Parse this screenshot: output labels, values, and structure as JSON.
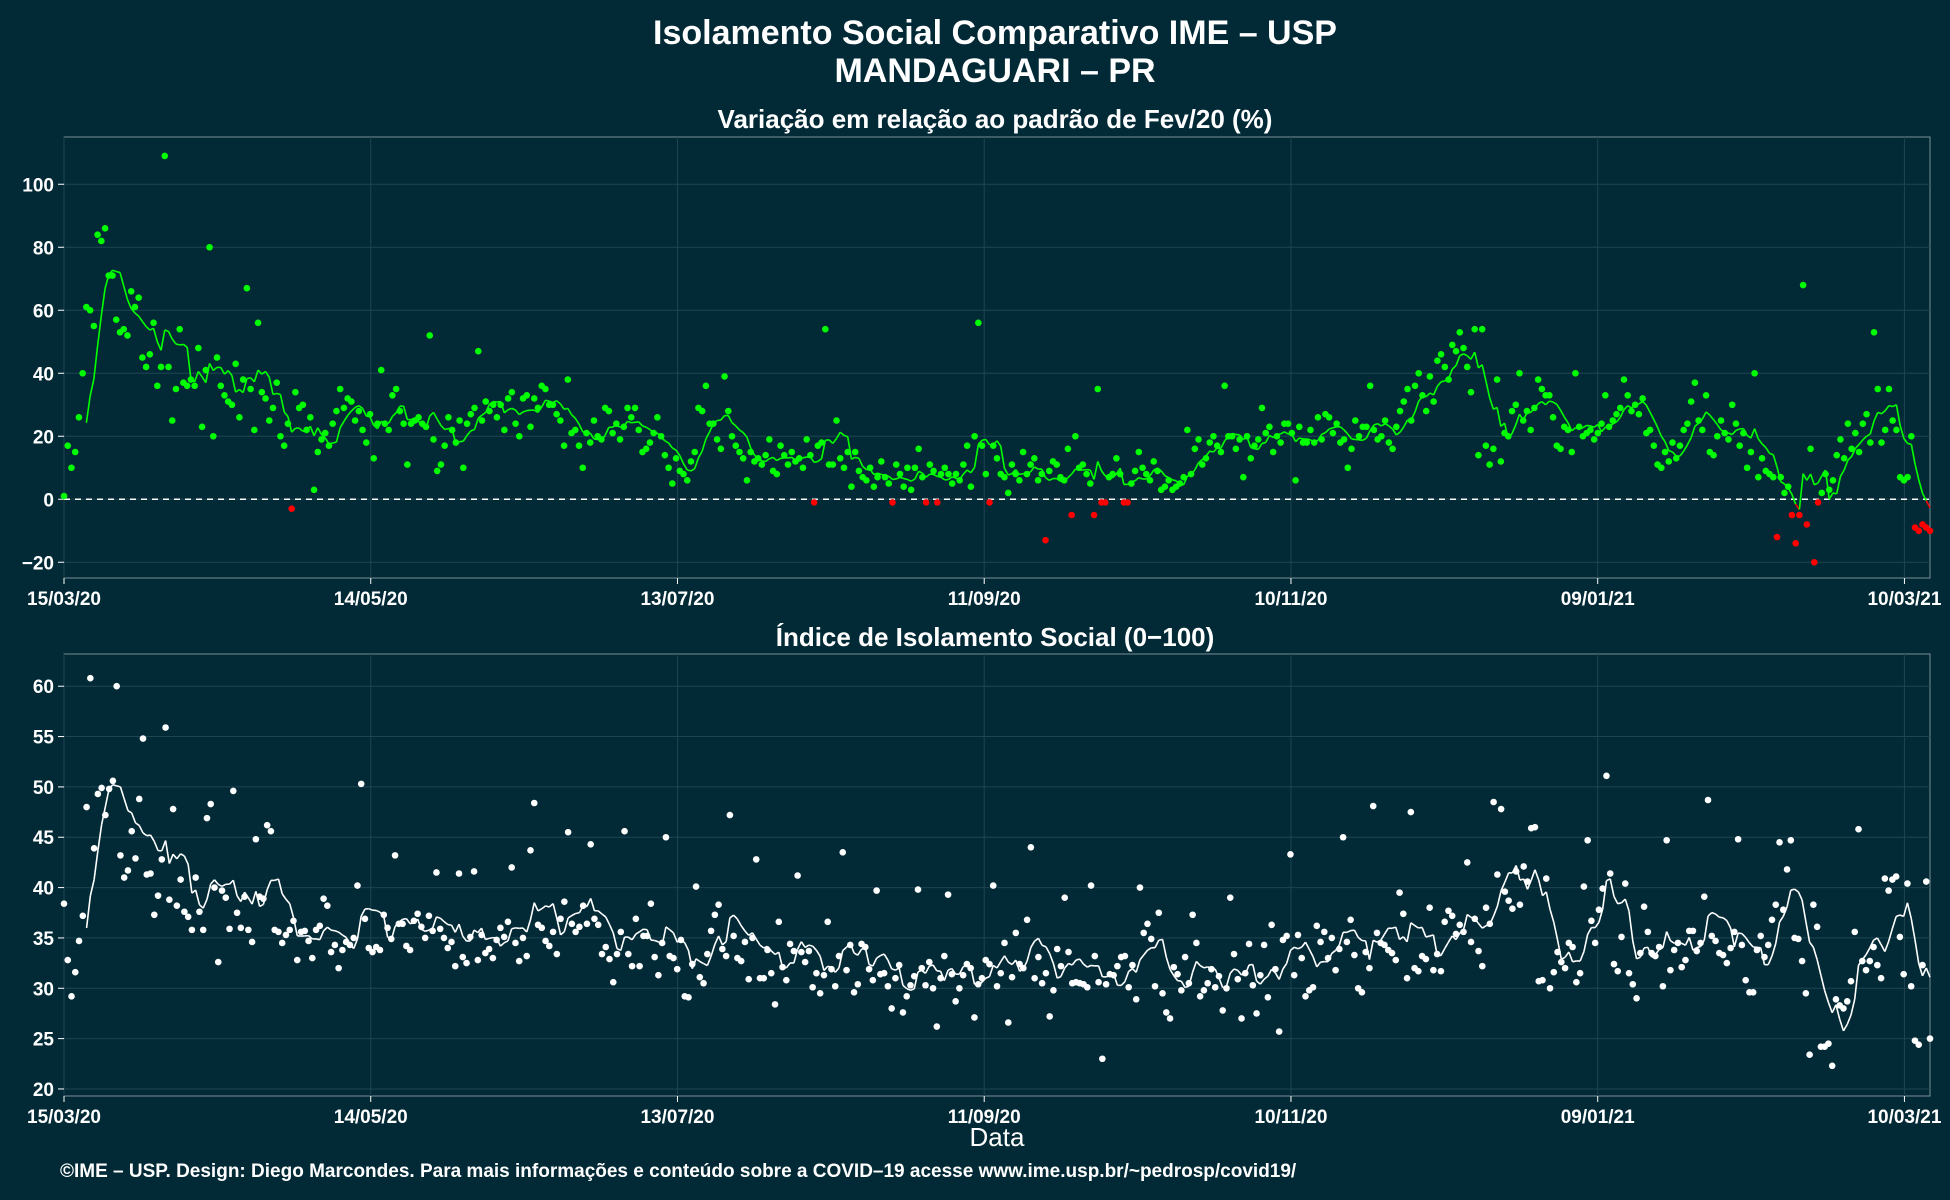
{
  "title_line1": "Isolamento Social Comparativo IME – USP",
  "title_line2": "MANDAGUARI – PR",
  "footer": "©IME – USP. Design: Diego Marcondes. Para mais informações e conteúdo sobre a COVID–19 acesse www.ime.usp.br/~pedrosp/covid19/",
  "colors": {
    "background": "#022a36",
    "positive": "#00ff00",
    "negative": "#ff0000",
    "index": "#ffffff",
    "grid": "#1e4452"
  },
  "chart_data": [
    {
      "type": "scatter",
      "title": "Variação em relação ao padrão de Fev/20 (%)",
      "xlabel": "",
      "ylabel": "",
      "x_ticks": [
        "15/03/20",
        "14/05/20",
        "13/07/20",
        "11/09/20",
        "10/11/20",
        "09/01/21",
        "10/03/21"
      ],
      "y_ticks": [
        -20,
        0,
        20,
        40,
        60,
        80,
        100
      ],
      "ylim": [
        -25,
        115
      ],
      "xlim_days": [
        0,
        365
      ],
      "reference_line": 0,
      "series": [
        {
          "values": [
            1,
            17,
            10,
            15,
            26,
            40,
            61,
            60,
            55,
            84,
            82,
            86,
            71,
            71,
            57,
            53,
            54,
            52,
            66,
            61,
            64,
            45,
            42,
            46,
            56,
            36,
            42,
            109,
            42,
            25,
            35,
            54,
            37,
            36,
            38,
            36,
            48,
            23,
            41,
            80,
            20,
            45,
            36,
            33,
            31,
            30,
            43,
            26,
            38,
            67,
            35,
            22,
            56,
            34,
            32,
            25,
            29,
            37,
            20,
            17,
            24,
            -3,
            34,
            29,
            30,
            22,
            26,
            3,
            15,
            19,
            21,
            17,
            24,
            28,
            35,
            29,
            32,
            31,
            25,
            28,
            22,
            18,
            27,
            13,
            24,
            41,
            24,
            22,
            33,
            35,
            28,
            24,
            11,
            24,
            25,
            26,
            24,
            23,
            52,
            19,
            9,
            11,
            17,
            26,
            22,
            18,
            25,
            10,
            24,
            27,
            29,
            47,
            25,
            31,
            28,
            30,
            26,
            30,
            22,
            32,
            34,
            24,
            20,
            32,
            33,
            23,
            32,
            29,
            36,
            35,
            30,
            30,
            27,
            25,
            17,
            38,
            21,
            22,
            17,
            10,
            21,
            18,
            25,
            20,
            19,
            29,
            28,
            21,
            24,
            19,
            23,
            29,
            26,
            29,
            22,
            15,
            16,
            18,
            21,
            26,
            20,
            14,
            10,
            5,
            13,
            9,
            8,
            6,
            12,
            15,
            29,
            28,
            36,
            24,
            24,
            19,
            16,
            39,
            28,
            20,
            17,
            15,
            13,
            6,
            15,
            12,
            13,
            11,
            14,
            19,
            9,
            8,
            17,
            14,
            11,
            15,
            12,
            13,
            10,
            19,
            14,
            -1,
            17,
            18,
            54,
            11,
            11,
            25,
            13,
            10,
            15,
            4,
            15,
            9,
            7,
            6,
            10,
            4,
            7,
            12,
            7,
            5,
            -1,
            11,
            8,
            4,
            10,
            3,
            10,
            16,
            7,
            -1,
            11,
            9,
            -1,
            8,
            10,
            8,
            5,
            8,
            6,
            11,
            17,
            4,
            20,
            56,
            17,
            8,
            -1,
            17,
            13,
            8,
            7,
            2,
            11,
            8,
            6,
            15,
            8,
            11,
            13,
            6,
            8,
            -13,
            9,
            12,
            11,
            7,
            6,
            16,
            -5,
            20,
            10,
            11,
            8,
            5,
            -5,
            35,
            -1,
            -1,
            7,
            8,
            13,
            8,
            -1,
            -1,
            5,
            9,
            15,
            10,
            8,
            6,
            12,
            9,
            3,
            4,
            6,
            3,
            4,
            5,
            7,
            22,
            8,
            16,
            19,
            11,
            13,
            18,
            20,
            17,
            15,
            36,
            20,
            20,
            16,
            19,
            7,
            20,
            13,
            17,
            19,
            29,
            21,
            23,
            15,
            20,
            18,
            24,
            24,
            21,
            6,
            23,
            18,
            18,
            22,
            18,
            26,
            19,
            27,
            26,
            21,
            24,
            18,
            19,
            10,
            16,
            25,
            20,
            23,
            23,
            36,
            22,
            19,
            20,
            25,
            18,
            16,
            23,
            28,
            31,
            35,
            25,
            36,
            40,
            33,
            28,
            39,
            31,
            44,
            46,
            42,
            38,
            49,
            47,
            53,
            48,
            42,
            34,
            54,
            14,
            54,
            17,
            11,
            16,
            38,
            12,
            21,
            20,
            28,
            30,
            40,
            25,
            28,
            22,
            29,
            38,
            35,
            33,
            33,
            26,
            17,
            16,
            23,
            22,
            15,
            40,
            23,
            20,
            21,
            22,
            19,
            21,
            24,
            33,
            23,
            25,
            27,
            29,
            38,
            33,
            28,
            30,
            27,
            32,
            21,
            22,
            17,
            11,
            10,
            15,
            12,
            18,
            13,
            17,
            22,
            24,
            31,
            37,
            25,
            22,
            33,
            15,
            14,
            20,
            25,
            21,
            19,
            30,
            24,
            17,
            21,
            10,
            15,
            40,
            7,
            13,
            9,
            8,
            7,
            -12,
            7,
            2,
            4,
            -5,
            -14,
            -5,
            68,
            -8,
            16,
            -20,
            -1,
            2,
            8,
            3,
            6,
            14,
            19,
            13,
            24,
            16,
            21,
            15,
            24,
            27,
            18,
            53,
            35,
            18,
            22,
            35,
            25,
            22,
            7,
            6,
            7,
            20,
            -9,
            -10,
            -8,
            -9,
            -10
          ],
          "note": "single daily values; color by sign (green >= 0, red < 0); 7-day moving average drawn as line"
        }
      ]
    },
    {
      "type": "scatter",
      "title": "Índice de Isolamento Social (0−100)",
      "xlabel": "Data",
      "ylabel": "",
      "x_ticks": [
        "15/03/20",
        "14/05/20",
        "13/07/20",
        "11/09/20",
        "10/11/20",
        "09/01/21",
        "10/03/21"
      ],
      "y_ticks": [
        20,
        25,
        30,
        35,
        40,
        45,
        50,
        55,
        60
      ],
      "ylim": [
        19.3,
        63.2
      ],
      "xlim_days": [
        0,
        365
      ],
      "series": [
        {
          "values": [
            38.4,
            32.8,
            29.2,
            31.6,
            34.7,
            37.2,
            48.0,
            60.8,
            43.9,
            49.3,
            49.9,
            47.2,
            49.8,
            50.6,
            60.0,
            43.2,
            41.0,
            41.7,
            45.6,
            42.9,
            48.8,
            54.8,
            41.3,
            41.4,
            37.3,
            39.2,
            42.8,
            55.9,
            38.8,
            47.8,
            38.2,
            40.8,
            37.6,
            37.1,
            35.8,
            41.0,
            37.6,
            35.8,
            46.9,
            48.3,
            40.0,
            32.6,
            39.7,
            39.0,
            35.9,
            49.6,
            37.5,
            36.0,
            39.1,
            35.8,
            34.6,
            44.8,
            39.1,
            38.9,
            46.2,
            45.6,
            35.8,
            35.6,
            34.5,
            35.3,
            35.8,
            36.7,
            32.8,
            35.6,
            35.7,
            34.7,
            33.0,
            35.8,
            36.2,
            38.9,
            38.2,
            33.6,
            34.3,
            32.0,
            33.8,
            34.6,
            34.3,
            35.0,
            40.2,
            50.3,
            36.9,
            34.0,
            33.6,
            34.1,
            33.8,
            37.3,
            36.0,
            34.9,
            43.2,
            36.4,
            36.4,
            34.2,
            33.8,
            36.7,
            37.4,
            36.1,
            35.0,
            37.2,
            35.7,
            41.5,
            35.9,
            35.0,
            34.0,
            34.6,
            32.2,
            41.4,
            33.1,
            32.5,
            35.1,
            41.6,
            32.8,
            35.3,
            33.5,
            33.9,
            33.0,
            34.8,
            36.0,
            35.1,
            36.6,
            42.0,
            34.5,
            32.7,
            35.0,
            33.2,
            43.7,
            48.4,
            36.3,
            36.0,
            34.7,
            34.2,
            35.6,
            33.4,
            36.9,
            38.6,
            45.5,
            36.4,
            35.6,
            36.1,
            38.2,
            36.4,
            44.3,
            36.9,
            36.3,
            33.4,
            34.1,
            32.9,
            30.6,
            33.4,
            35.6,
            45.6,
            33.4,
            32.2,
            36.9,
            32.2,
            35.2,
            35.2,
            38.4,
            33.1,
            31.3,
            34.5,
            45.0,
            33.2,
            33.0,
            31.9,
            34.8,
            29.2,
            29.1,
            32.4,
            40.1,
            31.1,
            30.5,
            33.4,
            35.7,
            37.3,
            38.3,
            33.9,
            33.2,
            47.2,
            35.2,
            33.0,
            32.7,
            34.6,
            30.9,
            35.0,
            42.8,
            31.0,
            31.0,
            33.8,
            31.5,
            28.4,
            36.6,
            32.1,
            30.8,
            34.4,
            33.7,
            41.2,
            33.6,
            32.6,
            33.7,
            30.1,
            31.5,
            29.5,
            31.3,
            36.6,
            31.9,
            30.2,
            33.2,
            43.5,
            31.8,
            34.3,
            29.6,
            30.4,
            34.4,
            34.1,
            31.9,
            30.8,
            39.7,
            31.4,
            31.5,
            30.2,
            28.0,
            31.0,
            32.3,
            27.6,
            29.2,
            30.3,
            31.2,
            39.8,
            32.0,
            30.3,
            32.6,
            30.0,
            26.2,
            31.0,
            33.2,
            39.3,
            31.4,
            28.7,
            30.0,
            31.3,
            32.4,
            32.0,
            27.1,
            30.4,
            31.0,
            32.8,
            32.4,
            40.2,
            30.2,
            31.5,
            34.5,
            26.6,
            31.1,
            35.5,
            32.4,
            32.0,
            36.8,
            44.0,
            31.0,
            33.1,
            30.5,
            31.5,
            27.2,
            29.8,
            33.9,
            32.2,
            39.0,
            33.6,
            30.5,
            30.6,
            30.5,
            30.4,
            30.1,
            40.2,
            33.2,
            30.6,
            23.0,
            30.4,
            31.4,
            31.3,
            32.2,
            33.1,
            33.2,
            30.1,
            32.3,
            28.9,
            40.0,
            35.5,
            36.4,
            34.9,
            30.2,
            37.5,
            29.5,
            27.6,
            27.0,
            32.1,
            31.4,
            29.8,
            33.1,
            30.5,
            37.3,
            34.5,
            29.2,
            29.8,
            30.5,
            31.9,
            30.1,
            31.2,
            27.8,
            30.0,
            39.0,
            33.4,
            30.9,
            27.0,
            31.5,
            34.4,
            30.3,
            27.5,
            31.3,
            34.3,
            29.1,
            36.3,
            31.9,
            25.7,
            34.8,
            35.2,
            43.3,
            31.3,
            35.3,
            33.0,
            29.2,
            29.8,
            30.1,
            36.2,
            34.6,
            35.6,
            33.0,
            35.0,
            31.8,
            33.9,
            45.0,
            34.6,
            36.8,
            33.3,
            30.0,
            29.6,
            33.6,
            32.0,
            48.1,
            35.5,
            34.5,
            34.3,
            33.8,
            33.5,
            32.8,
            39.5,
            37.4,
            31.0,
            47.5,
            32.0,
            31.7,
            33.2,
            32.9,
            38.0,
            31.8,
            33.4,
            31.7,
            36.6,
            37.7,
            37.2,
            35.4,
            36.3,
            35.6,
            42.5,
            34.6,
            36.9,
            33.7,
            32.2,
            38.0,
            36.4,
            48.5,
            41.3,
            47.8,
            39.6,
            38.7,
            37.9,
            41.6,
            38.3,
            42.1,
            40.6,
            45.9,
            46.0,
            30.7,
            30.8,
            40.9,
            30.0,
            31.6,
            33.6,
            32.6,
            32.0,
            34.5,
            34.1,
            30.6,
            31.5,
            40.1,
            44.7,
            36.7,
            34.5,
            37.8,
            39.9,
            51.1,
            41.4,
            32.4,
            31.7,
            35.1,
            40.4,
            31.5,
            30.4,
            29.0,
            33.5,
            38.1,
            35.6,
            33.5,
            33.2,
            34.1,
            30.2,
            44.7,
            31.8,
            33.8,
            34.5,
            32.1,
            32.8,
            35.7,
            35.7,
            33.7,
            34.5,
            39.1,
            48.7,
            35.2,
            34.7,
            33.5,
            33.3,
            32.5,
            34.0,
            35.6,
            44.8,
            34.3,
            30.8,
            29.6,
            29.6,
            33.8,
            35.2,
            33.1,
            34.3,
            36.8,
            38.3,
            44.5,
            37.8,
            41.8,
            44.7,
            35.0,
            34.9,
            32.7,
            29.5,
            23.4,
            38.3,
            36.1,
            24.2,
            24.2,
            24.5,
            22.3,
            28.9,
            28.3,
            28.0,
            28.7,
            30.7,
            35.6,
            45.8,
            32.7,
            31.8,
            32.7,
            34.1,
            32.3,
            31.0,
            40.9,
            39.7,
            40.8,
            41.1,
            35.1,
            31.4,
            40.4,
            30.2,
            24.8,
            24.4,
            32.3,
            40.6,
            25.0
          ],
          "note": "daily index values (white points); 7-day moving average drawn as white line"
        }
      ]
    }
  ]
}
